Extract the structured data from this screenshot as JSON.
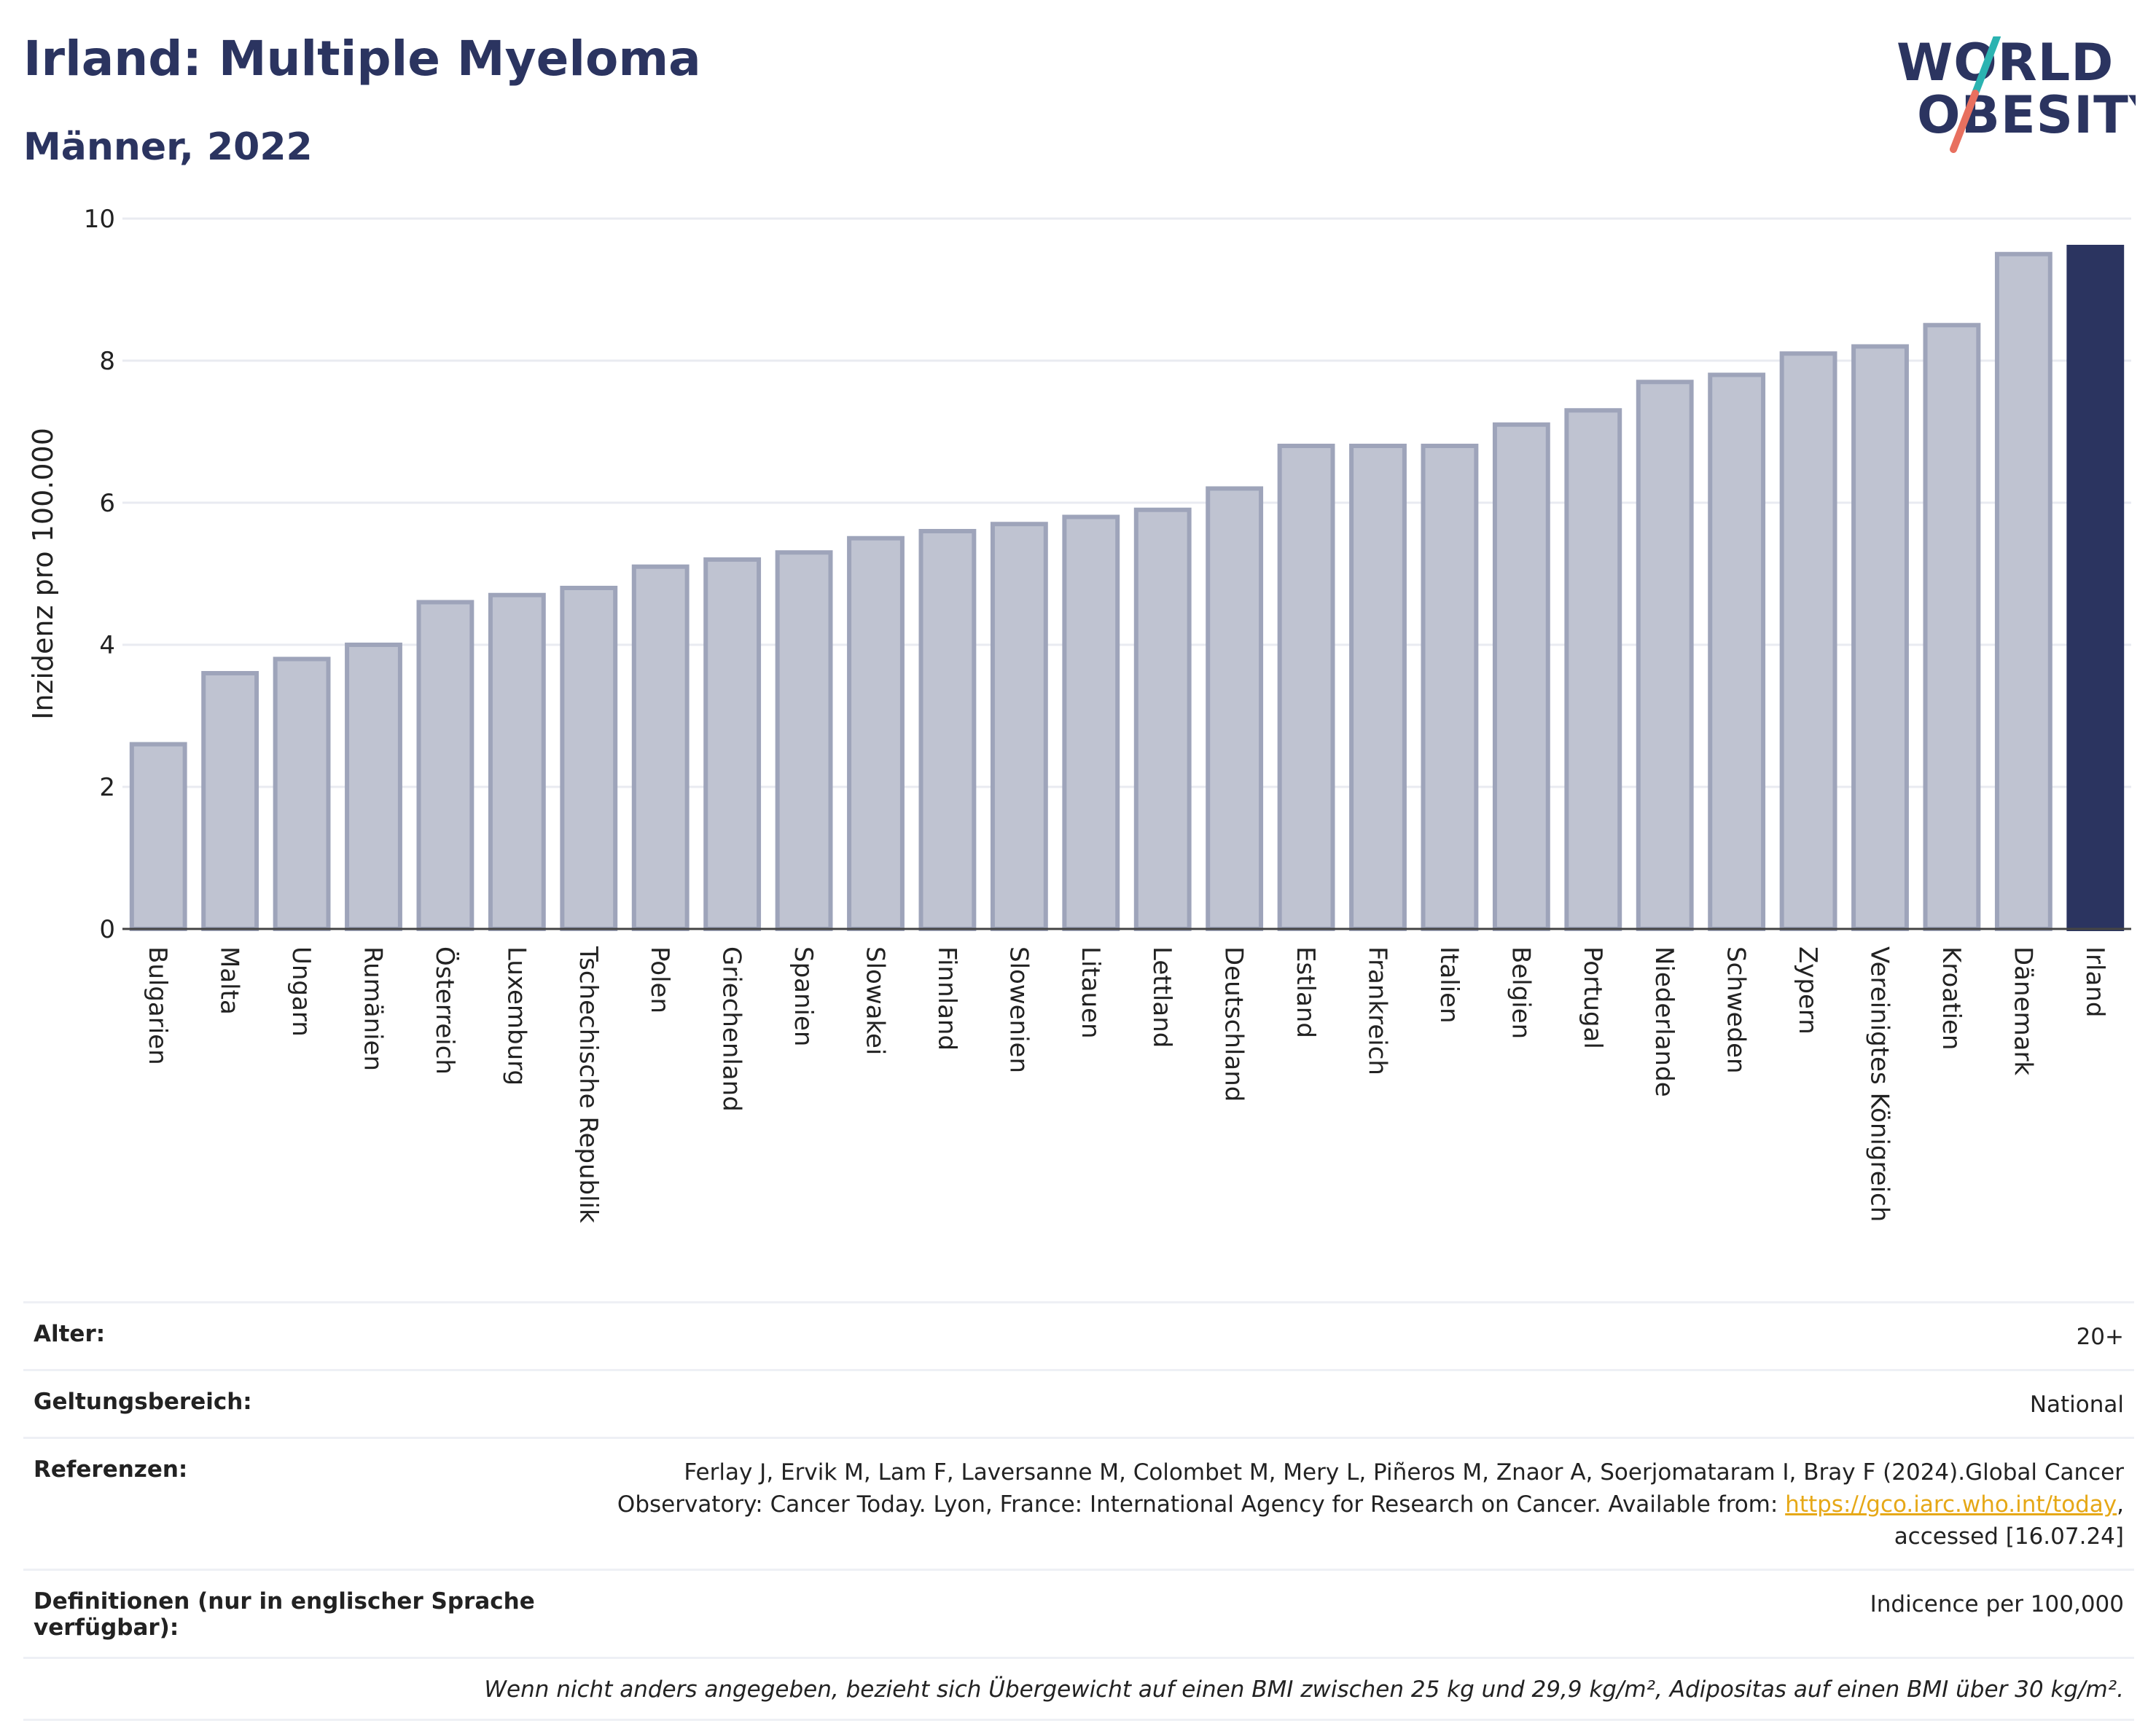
{
  "header": {
    "title": "Irland: Multiple Myeloma",
    "subtitle": "Männer, 2022",
    "logo_line1": "WORLD",
    "logo_line2": "OBESITY"
  },
  "chart_data": {
    "type": "bar",
    "title": "Irland: Multiple Myeloma",
    "subtitle": "Männer, 2022",
    "xlabel": "",
    "ylabel": "Inzidenz pro 100.000",
    "ylim": [
      0,
      10
    ],
    "yticks": [
      0,
      2,
      4,
      6,
      8,
      10
    ],
    "grid": true,
    "highlight": "Irland",
    "colors": {
      "bar": "#bfc3d1",
      "bar_border": "#9ea4ba",
      "highlight": "#2b3460"
    },
    "categories": [
      "Bulgarien",
      "Malta",
      "Ungarn",
      "Rumänien",
      "Österreich",
      "Luxemburg",
      "Tschechische Republik",
      "Polen",
      "Griechenland",
      "Spanien",
      "Slowakei",
      "Finnland",
      "Slowenien",
      "Litauen",
      "Lettland",
      "Deutschland",
      "Estland",
      "Frankreich",
      "Italien",
      "Belgien",
      "Portugal",
      "Niederlande",
      "Schweden",
      "Zypern",
      "Vereinigtes Königreich",
      "Kroatien",
      "Dänemark",
      "Irland"
    ],
    "values": [
      2.6,
      3.6,
      3.8,
      4.0,
      4.6,
      4.7,
      4.8,
      5.1,
      5.2,
      5.3,
      5.5,
      5.6,
      5.7,
      5.8,
      5.9,
      6.2,
      6.8,
      6.8,
      6.8,
      7.1,
      7.3,
      7.7,
      7.8,
      8.1,
      8.2,
      8.5,
      9.5,
      9.6
    ]
  },
  "info": {
    "age_label": "Alter:",
    "age_value": "20+",
    "scope_label": "Geltungsbereich:",
    "scope_value": "National",
    "ref_label": "Referenzen:",
    "ref_text1": "Ferlay J, Ervik M, Lam F, Laversanne M, Colombet M, Mery L, Piñeros M, Znaor A, Soerjomataram I, Bray F (2024).Global Cancer",
    "ref_text2": "Observatory: Cancer Today. Lyon, France: International Agency for Research on Cancer. Available from: ",
    "ref_link": "https://gco.iarc.who.int/today",
    "ref_text3": ",",
    "ref_text4": "accessed [16.07.24]",
    "def_label": "Definitionen (nur in englischer Sprache verfügbar):",
    "def_value": "Indicence per 100,000",
    "note": "Wenn nicht anders angegeben, bezieht sich Übergewicht auf einen BMI zwischen 25 kg und 29,9 kg/m², Adipositas auf einen BMI über 30 kg/m²."
  }
}
